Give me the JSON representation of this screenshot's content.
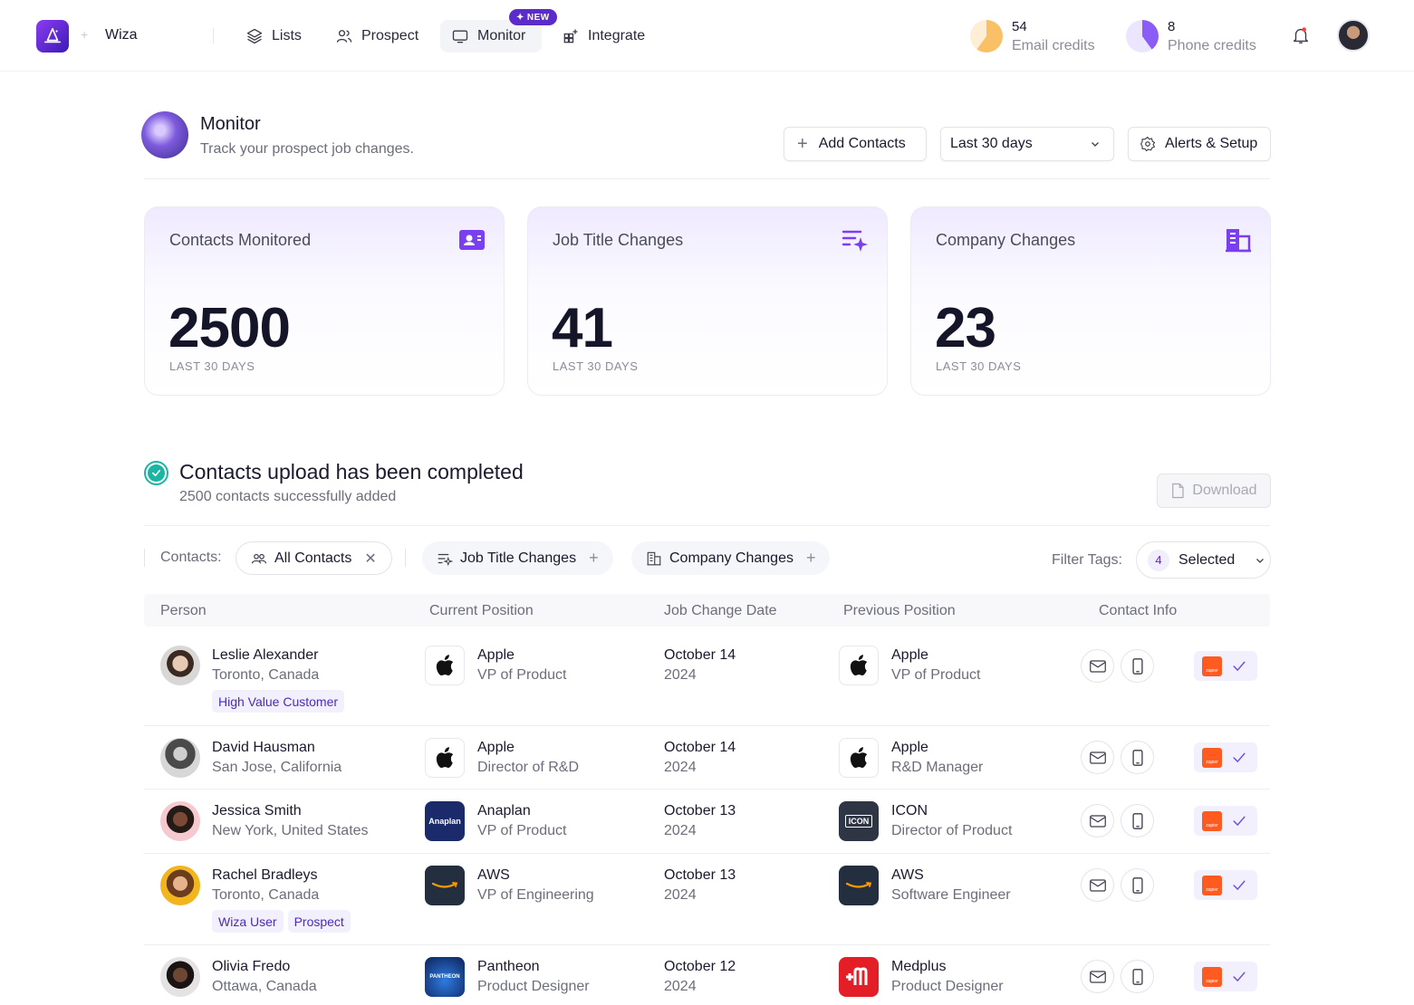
{
  "brand": {
    "name": "Wiza"
  },
  "nav": {
    "lists": "Lists",
    "prospect": "Prospect",
    "monitor": "Monitor",
    "monitor_badge": "NEW",
    "integrate": "Integrate"
  },
  "credits": {
    "email": {
      "count": "54",
      "label": "Email credits",
      "color": "#f9c066"
    },
    "phone": {
      "count": "8",
      "label": "Phone credits",
      "color": "#8b5cf6"
    }
  },
  "page": {
    "title": "Monitor",
    "subtitle": "Track your prospect job changes.",
    "add_contacts": "Add Contacts",
    "range": "Last 30 days",
    "alerts": "Alerts & Setup"
  },
  "stats": [
    {
      "title": "Contacts Monitored",
      "value": "2500",
      "period": "LAST 30 DAYS",
      "icon": "contact-card-icon"
    },
    {
      "title": "Job Title Changes",
      "value": "41",
      "period": "LAST 30 DAYS",
      "icon": "list-sparkle-icon"
    },
    {
      "title": "Company Changes",
      "value": "23",
      "period": "LAST 30 DAYS",
      "icon": "building-icon"
    }
  ],
  "upload": {
    "title": "Contacts upload has been completed",
    "subtitle": "2500 contacts successfully added",
    "download": "Download"
  },
  "filters": {
    "contacts_label": "Contacts:",
    "all_contacts": "All Contacts",
    "job_title_changes": "Job Title Changes",
    "company_changes": "Company Changes",
    "tags_label": "Filter Tags:",
    "selected_count": "4",
    "selected_label": "Selected"
  },
  "columns": {
    "person": "Person",
    "current": "Current Position",
    "date": "Job Change Date",
    "previous": "Previous Position",
    "contact": "Contact Info"
  },
  "rows": [
    {
      "name": "Leslie Alexander",
      "location": "Toronto, Canada",
      "tags": [
        "High Value Customer"
      ],
      "cur_company": "Apple",
      "cur_role": "VP of Product",
      "date": "October 14",
      "year": "2024",
      "prev_company": "Apple",
      "prev_role": "VP of Product"
    },
    {
      "name": "David Hausman",
      "location": "San Jose, California",
      "tags": [],
      "cur_company": "Apple",
      "cur_role": "Director of R&D",
      "date": "October 14",
      "year": "2024",
      "prev_company": "Apple",
      "prev_role": "R&D Manager"
    },
    {
      "name": "Jessica Smith",
      "location": "New York, United States",
      "tags": [],
      "cur_company": "Anaplan",
      "cur_role": "VP of Product",
      "date": "October 13",
      "year": "2024",
      "prev_company": "ICON",
      "prev_role": "Director of Product"
    },
    {
      "name": "Rachel Bradleys",
      "location": "Toronto, Canada",
      "tags": [
        "Wiza User",
        "Prospect"
      ],
      "cur_company": "AWS",
      "cur_role": "VP of Engineering",
      "date": "October 13",
      "year": "2024",
      "prev_company": "AWS",
      "prev_role": "Software Engineer"
    },
    {
      "name": "Olivia Fredo",
      "location": "Ottawa, Canada",
      "tags": [],
      "cur_company": "Pantheon",
      "cur_role": "Product Designer",
      "date": "October 12",
      "year": "2024",
      "prev_company": "Medplus",
      "prev_role": "Product Designer"
    }
  ],
  "logo_text": {
    "anaplan": "Anaplan",
    "icon": "ICON",
    "pantheon": "PANTHEON",
    "zapier": "zapier"
  }
}
